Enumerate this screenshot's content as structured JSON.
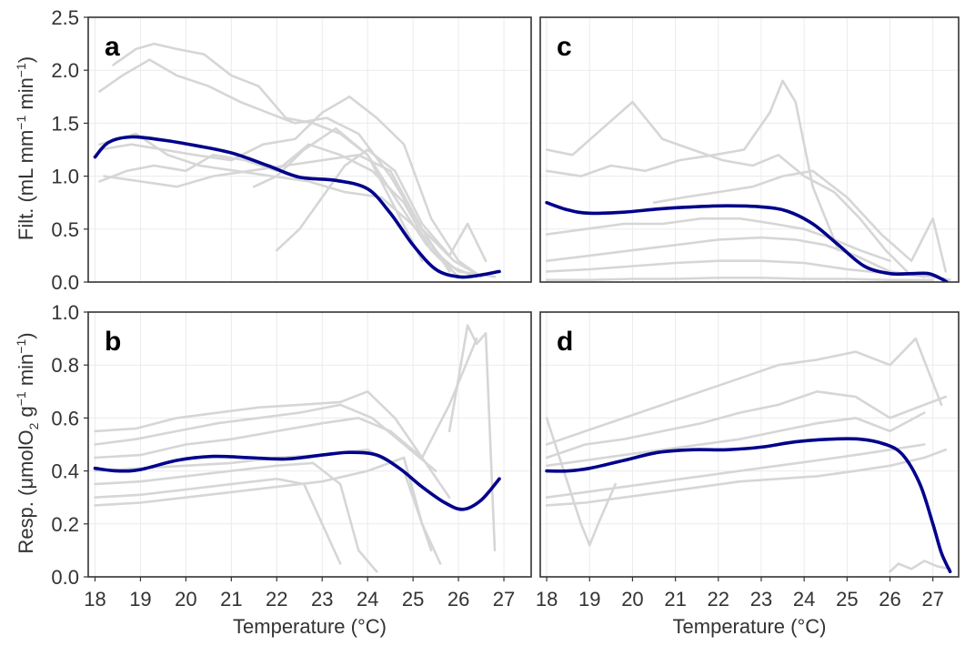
{
  "chart_data": [
    {
      "panel": "a",
      "type": "line",
      "ylabel": "Filt. (mL mm⁻¹ min⁻¹)",
      "xlabel": "",
      "xlim": [
        17.85,
        27.6
      ],
      "ylim": [
        0,
        2.5
      ],
      "yticks": [
        0,
        0.5,
        1.0,
        1.5,
        2.0,
        2.5
      ],
      "ytick_labels": [
        "0.0",
        "0.5",
        "1.0",
        "1.5",
        "2.0",
        "2.5"
      ],
      "grid": true,
      "fit": {
        "x": [
          18,
          18.3,
          18.8,
          19.5,
          20.2,
          21,
          21.8,
          22.5,
          23.3,
          24,
          24.5,
          25,
          25.5,
          26,
          26.4,
          26.9
        ],
        "y": [
          1.18,
          1.32,
          1.37,
          1.34,
          1.29,
          1.22,
          1.1,
          0.99,
          0.96,
          0.88,
          0.65,
          0.35,
          0.12,
          0.05,
          0.06,
          0.1
        ]
      },
      "raw_series": [
        {
          "x": [
            18.1,
            18.6,
            19.2,
            19.8,
            20.5,
            21.2,
            21.8,
            22.4,
            23.1,
            23.8,
            24.5,
            25.2,
            25.8
          ],
          "y": [
            1.8,
            1.95,
            2.1,
            1.95,
            1.85,
            1.7,
            1.6,
            1.5,
            1.55,
            1.4,
            1.0,
            0.5,
            0.1
          ]
        },
        {
          "x": [
            18.4,
            18.9,
            19.3,
            19.8,
            20.4,
            21.0,
            21.6,
            22.2,
            22.8,
            23.4,
            24.0,
            24.6,
            25.2
          ],
          "y": [
            2.05,
            2.2,
            2.25,
            2.2,
            2.15,
            1.95,
            1.85,
            1.55,
            1.5,
            1.4,
            1.2,
            0.7,
            0.2
          ]
        },
        {
          "x": [
            18.1,
            18.8,
            19.5,
            20.2,
            21.0,
            21.7,
            22.4,
            23.0,
            23.6,
            24.2,
            24.8,
            25.4,
            26.0,
            26.5
          ],
          "y": [
            1.25,
            1.3,
            1.25,
            1.2,
            1.15,
            1.3,
            1.35,
            1.6,
            1.75,
            1.55,
            1.3,
            0.6,
            0.2,
            0.05
          ]
        },
        {
          "x": [
            18.1,
            18.7,
            19.3,
            20.0,
            20.6,
            21.3,
            22.0,
            22.7,
            23.4,
            24.1,
            24.8,
            25.4,
            26.0
          ],
          "y": [
            0.95,
            1.05,
            1.1,
            1.05,
            1.2,
            1.15,
            1.05,
            1.3,
            1.2,
            1.05,
            0.75,
            0.3,
            0.05
          ]
        },
        {
          "x": [
            18.1,
            18.9,
            19.6,
            20.3,
            21.1,
            21.9,
            22.7,
            23.5,
            24.3,
            25.1,
            25.8,
            26.4
          ],
          "y": [
            1.3,
            1.4,
            1.2,
            1.1,
            1.05,
            1.0,
            0.95,
            0.85,
            0.8,
            0.5,
            0.15,
            0.05
          ]
        },
        {
          "x": [
            18.2,
            19.0,
            19.8,
            20.6,
            21.4,
            22.2,
            23.0,
            23.8,
            24.5,
            25.2,
            25.9,
            26.5
          ],
          "y": [
            1.0,
            0.95,
            0.9,
            1.0,
            1.05,
            1.1,
            1.15,
            1.2,
            1.05,
            0.5,
            0.2,
            0.05
          ]
        },
        {
          "x": [
            22.0,
            22.5,
            23.0,
            23.5,
            24.0,
            24.6,
            25.2,
            25.8,
            26.2,
            26.6
          ],
          "y": [
            0.3,
            0.5,
            0.8,
            1.1,
            1.25,
            1.05,
            0.55,
            0.25,
            0.55,
            0.2
          ]
        },
        {
          "x": [
            21.5,
            22.0,
            22.6,
            23.3,
            24.0,
            24.6,
            25.3,
            26.0,
            26.8
          ],
          "y": [
            0.9,
            1.0,
            1.25,
            1.45,
            1.2,
            0.8,
            0.35,
            0.1,
            0.05
          ]
        }
      ]
    },
    {
      "panel": "c",
      "type": "line",
      "ylabel": "",
      "xlabel": "",
      "xlim": [
        17.85,
        27.6
      ],
      "ylim": [
        0,
        2.5
      ],
      "grid": true,
      "fit": {
        "x": [
          18,
          18.5,
          19,
          19.8,
          20.6,
          21.4,
          22.2,
          23,
          23.6,
          24.2,
          24.8,
          25.4,
          26,
          26.5,
          26.9,
          27.2,
          27.4
        ],
        "y": [
          0.75,
          0.68,
          0.65,
          0.66,
          0.69,
          0.71,
          0.72,
          0.71,
          0.67,
          0.55,
          0.35,
          0.15,
          0.08,
          0.08,
          0.08,
          0.03,
          -0.02
        ]
      },
      "raw_series": [
        {
          "x": [
            18.0,
            18.6,
            19.3,
            20.0,
            20.7,
            21.4,
            22.1,
            22.8,
            23.4,
            24.0,
            24.7,
            25.3,
            25.9,
            26.4
          ],
          "y": [
            1.25,
            1.2,
            1.45,
            1.7,
            1.35,
            1.25,
            1.15,
            1.1,
            1.2,
            1.0,
            0.85,
            0.6,
            0.3,
            0.1
          ]
        },
        {
          "x": [
            18.0,
            18.8,
            19.5,
            20.3,
            21.1,
            21.9,
            22.6,
            23.2,
            23.5,
            23.8,
            24.2,
            24.8
          ],
          "y": [
            1.05,
            1.0,
            1.1,
            1.05,
            1.15,
            1.2,
            1.25,
            1.6,
            1.9,
            1.7,
            0.9,
            0.3
          ]
        },
        {
          "x": [
            18.0,
            18.9,
            19.8,
            20.7,
            21.6,
            22.5,
            23.3,
            24.0,
            24.7,
            25.3,
            26.0
          ],
          "y": [
            0.45,
            0.5,
            0.55,
            0.55,
            0.6,
            0.6,
            0.55,
            0.5,
            0.4,
            0.3,
            0.2
          ]
        },
        {
          "x": [
            18.0,
            19.0,
            20.0,
            21.0,
            22.0,
            23.0,
            23.8,
            24.5,
            25.2,
            26.0,
            26.8
          ],
          "y": [
            0.2,
            0.25,
            0.3,
            0.35,
            0.4,
            0.42,
            0.4,
            0.35,
            0.25,
            0.1,
            0.05
          ]
        },
        {
          "x": [
            18.0,
            19.0,
            20.0,
            21.0,
            22.0,
            23.0,
            24.0,
            25.0,
            26.0,
            27.0,
            27.4
          ],
          "y": [
            0.1,
            0.12,
            0.15,
            0.18,
            0.2,
            0.2,
            0.18,
            0.12,
            0.08,
            0.05,
            0.02
          ]
        },
        {
          "x": [
            18.0,
            19.0,
            20.0,
            21.0,
            22.0,
            23.0,
            24.0,
            25.0,
            26.0,
            27.0
          ],
          "y": [
            0.02,
            0.02,
            0.03,
            0.03,
            0.04,
            0.04,
            0.03,
            0.03,
            0.02,
            0.02
          ]
        },
        {
          "x": [
            20.5,
            21.2,
            22.0,
            22.8,
            23.5,
            24.2,
            25.0,
            25.8,
            26.5,
            27.0,
            27.3
          ],
          "y": [
            0.75,
            0.8,
            0.85,
            0.9,
            1.0,
            1.05,
            0.8,
            0.45,
            0.2,
            0.6,
            0.1
          ]
        }
      ]
    },
    {
      "panel": "b",
      "type": "line",
      "ylabel": "Resp. (μmolO₂ g⁻¹ min⁻¹)",
      "xlabel": "Temperature (°C)",
      "xlim": [
        17.85,
        27.6
      ],
      "ylim": [
        0,
        1.0
      ],
      "xticks": [
        18,
        19,
        20,
        21,
        22,
        23,
        24,
        25,
        26,
        27
      ],
      "yticks": [
        0,
        0.2,
        0.4,
        0.6,
        0.8,
        1.0
      ],
      "ytick_labels": [
        "0.0",
        "0.2",
        "0.4",
        "0.6",
        "0.8",
        "1.0"
      ],
      "grid": true,
      "fit": {
        "x": [
          18,
          18.5,
          19,
          19.8,
          20.6,
          21.4,
          22.2,
          23,
          23.6,
          24.2,
          24.7,
          25.2,
          25.7,
          26.1,
          26.5,
          26.9
        ],
        "y": [
          0.41,
          0.4,
          0.405,
          0.44,
          0.455,
          0.45,
          0.445,
          0.46,
          0.47,
          0.46,
          0.41,
          0.34,
          0.28,
          0.255,
          0.29,
          0.37
        ]
      },
      "raw_series": [
        {
          "x": [
            18.0,
            18.9,
            19.8,
            20.7,
            21.6,
            22.5,
            23.4,
            24.0,
            24.6,
            25.2,
            25.8,
            26.4
          ],
          "y": [
            0.55,
            0.56,
            0.6,
            0.62,
            0.64,
            0.65,
            0.66,
            0.7,
            0.6,
            0.45,
            0.65,
            0.9
          ]
        },
        {
          "x": [
            18.0,
            18.9,
            19.8,
            20.7,
            21.6,
            22.5,
            23.4,
            24.1,
            24.8,
            25.5
          ],
          "y": [
            0.5,
            0.52,
            0.55,
            0.58,
            0.6,
            0.62,
            0.65,
            0.6,
            0.5,
            0.4
          ]
        },
        {
          "x": [
            18.0,
            19.0,
            20.0,
            21.0,
            22.0,
            23.0,
            23.8,
            24.5,
            25.2,
            25.8
          ],
          "y": [
            0.45,
            0.46,
            0.5,
            0.52,
            0.55,
            0.58,
            0.6,
            0.55,
            0.45,
            0.3
          ]
        },
        {
          "x": [
            18.0,
            19.0,
            20.0,
            21.0,
            22.0,
            23.0,
            24.0,
            24.8,
            25.4
          ],
          "y": [
            0.4,
            0.41,
            0.42,
            0.43,
            0.45,
            0.46,
            0.48,
            0.4,
            0.1
          ]
        },
        {
          "x": [
            18.0,
            19.0,
            20.0,
            21.0,
            22.0,
            22.8,
            23.4,
            23.8,
            24.2
          ],
          "y": [
            0.35,
            0.36,
            0.38,
            0.4,
            0.42,
            0.43,
            0.35,
            0.1,
            0.02
          ]
        },
        {
          "x": [
            18.0,
            19.0,
            20.0,
            21.0,
            22.0,
            22.6,
            23.0,
            23.4
          ],
          "y": [
            0.3,
            0.31,
            0.33,
            0.35,
            0.37,
            0.35,
            0.2,
            0.05
          ]
        },
        {
          "x": [
            18.0,
            19.0,
            20.0,
            21.0,
            22.0,
            23.0,
            24.0,
            24.8,
            25.2,
            25.6
          ],
          "y": [
            0.27,
            0.28,
            0.3,
            0.32,
            0.34,
            0.36,
            0.4,
            0.45,
            0.2,
            0.05
          ]
        },
        {
          "x": [
            25.8,
            26.0,
            26.2,
            26.4,
            26.6,
            26.8
          ],
          "y": [
            0.55,
            0.75,
            0.95,
            0.88,
            0.92,
            0.1
          ]
        }
      ]
    },
    {
      "panel": "d",
      "type": "line",
      "ylabel": "",
      "xlabel": "Temperature (°C)",
      "xlim": [
        17.85,
        27.6
      ],
      "ylim": [
        0,
        1.0
      ],
      "xticks": [
        18,
        19,
        20,
        21,
        22,
        23,
        24,
        25,
        26,
        27
      ],
      "grid": true,
      "fit": {
        "x": [
          18,
          18.5,
          19,
          19.8,
          20.6,
          21.4,
          22.2,
          23,
          23.8,
          24.6,
          25.3,
          25.9,
          26.3,
          26.7,
          27.0,
          27.2,
          27.4
        ],
        "y": [
          0.4,
          0.4,
          0.41,
          0.44,
          0.47,
          0.48,
          0.48,
          0.49,
          0.51,
          0.52,
          0.52,
          0.5,
          0.46,
          0.35,
          0.2,
          0.09,
          0.02
        ]
      },
      "raw_series": [
        {
          "x": [
            18.0,
            18.9,
            19.8,
            20.7,
            21.6,
            22.5,
            23.4,
            24.3,
            25.2,
            26.0,
            26.6,
            27.2
          ],
          "y": [
            0.5,
            0.55,
            0.6,
            0.65,
            0.7,
            0.75,
            0.8,
            0.82,
            0.85,
            0.8,
            0.9,
            0.65
          ]
        },
        {
          "x": [
            18.0,
            18.9,
            19.8,
            20.7,
            21.6,
            22.5,
            23.4,
            24.3,
            25.2,
            26.0,
            26.8,
            27.3
          ],
          "y": [
            0.45,
            0.5,
            0.52,
            0.55,
            0.58,
            0.62,
            0.65,
            0.7,
            0.68,
            0.6,
            0.65,
            0.68
          ]
        },
        {
          "x": [
            18.0,
            18.9,
            19.8,
            20.7,
            21.6,
            22.5,
            23.4,
            24.3,
            25.2,
            26.0,
            26.8
          ],
          "y": [
            0.42,
            0.44,
            0.46,
            0.48,
            0.5,
            0.52,
            0.55,
            0.58,
            0.6,
            0.55,
            0.62
          ]
        },
        {
          "x": [
            18.0,
            18.9,
            19.8,
            20.7,
            21.6,
            22.5,
            23.4,
            24.3,
            25.2,
            26.0,
            26.8
          ],
          "y": [
            0.3,
            0.32,
            0.34,
            0.36,
            0.38,
            0.4,
            0.42,
            0.44,
            0.46,
            0.48,
            0.5
          ]
        },
        {
          "x": [
            18.0,
            18.9,
            19.8,
            20.7,
            21.6,
            22.5,
            23.4,
            24.3,
            25.2,
            26.0,
            26.8,
            27.3
          ],
          "y": [
            0.27,
            0.28,
            0.3,
            0.32,
            0.34,
            0.36,
            0.37,
            0.38,
            0.4,
            0.42,
            0.45,
            0.48
          ]
        },
        {
          "x": [
            18.0,
            18.4,
            18.8,
            19.0,
            19.2,
            19.6
          ],
          "y": [
            0.6,
            0.4,
            0.2,
            0.12,
            0.2,
            0.35
          ]
        },
        {
          "x": [
            26.0,
            26.2,
            26.5,
            26.8,
            27.1,
            27.4
          ],
          "y": [
            0.02,
            0.05,
            0.03,
            0.06,
            0.04,
            0.03
          ]
        }
      ]
    }
  ]
}
